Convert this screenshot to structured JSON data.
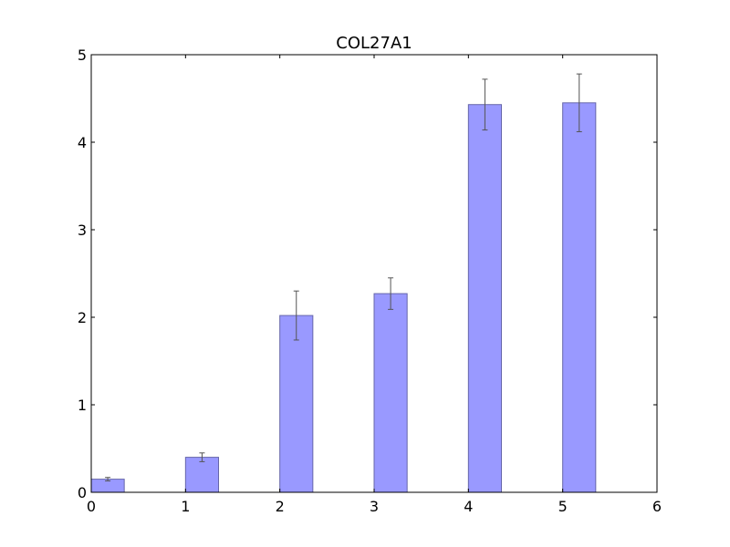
{
  "chart_data": {
    "type": "bar",
    "title": "COL27A1",
    "xlabel": "",
    "ylabel": "",
    "xlim": [
      0,
      6
    ],
    "ylim": [
      0,
      5
    ],
    "x_ticks": [
      "0",
      "1",
      "2",
      "3",
      "4",
      "5",
      "6"
    ],
    "y_ticks": [
      "0",
      "1",
      "2",
      "3",
      "4",
      "5"
    ],
    "bar_width": 0.35,
    "grid": false,
    "bar_color": "#9999ff",
    "bar_edge_color": "#6666aa",
    "error_color": "#555555",
    "series": [
      {
        "x": [
          0,
          1,
          2,
          3,
          4,
          5
        ],
        "values": [
          0.15,
          0.4,
          2.02,
          2.27,
          4.43,
          4.45
        ],
        "errors": [
          0.02,
          0.05,
          0.28,
          0.18,
          0.29,
          0.33
        ]
      }
    ]
  }
}
